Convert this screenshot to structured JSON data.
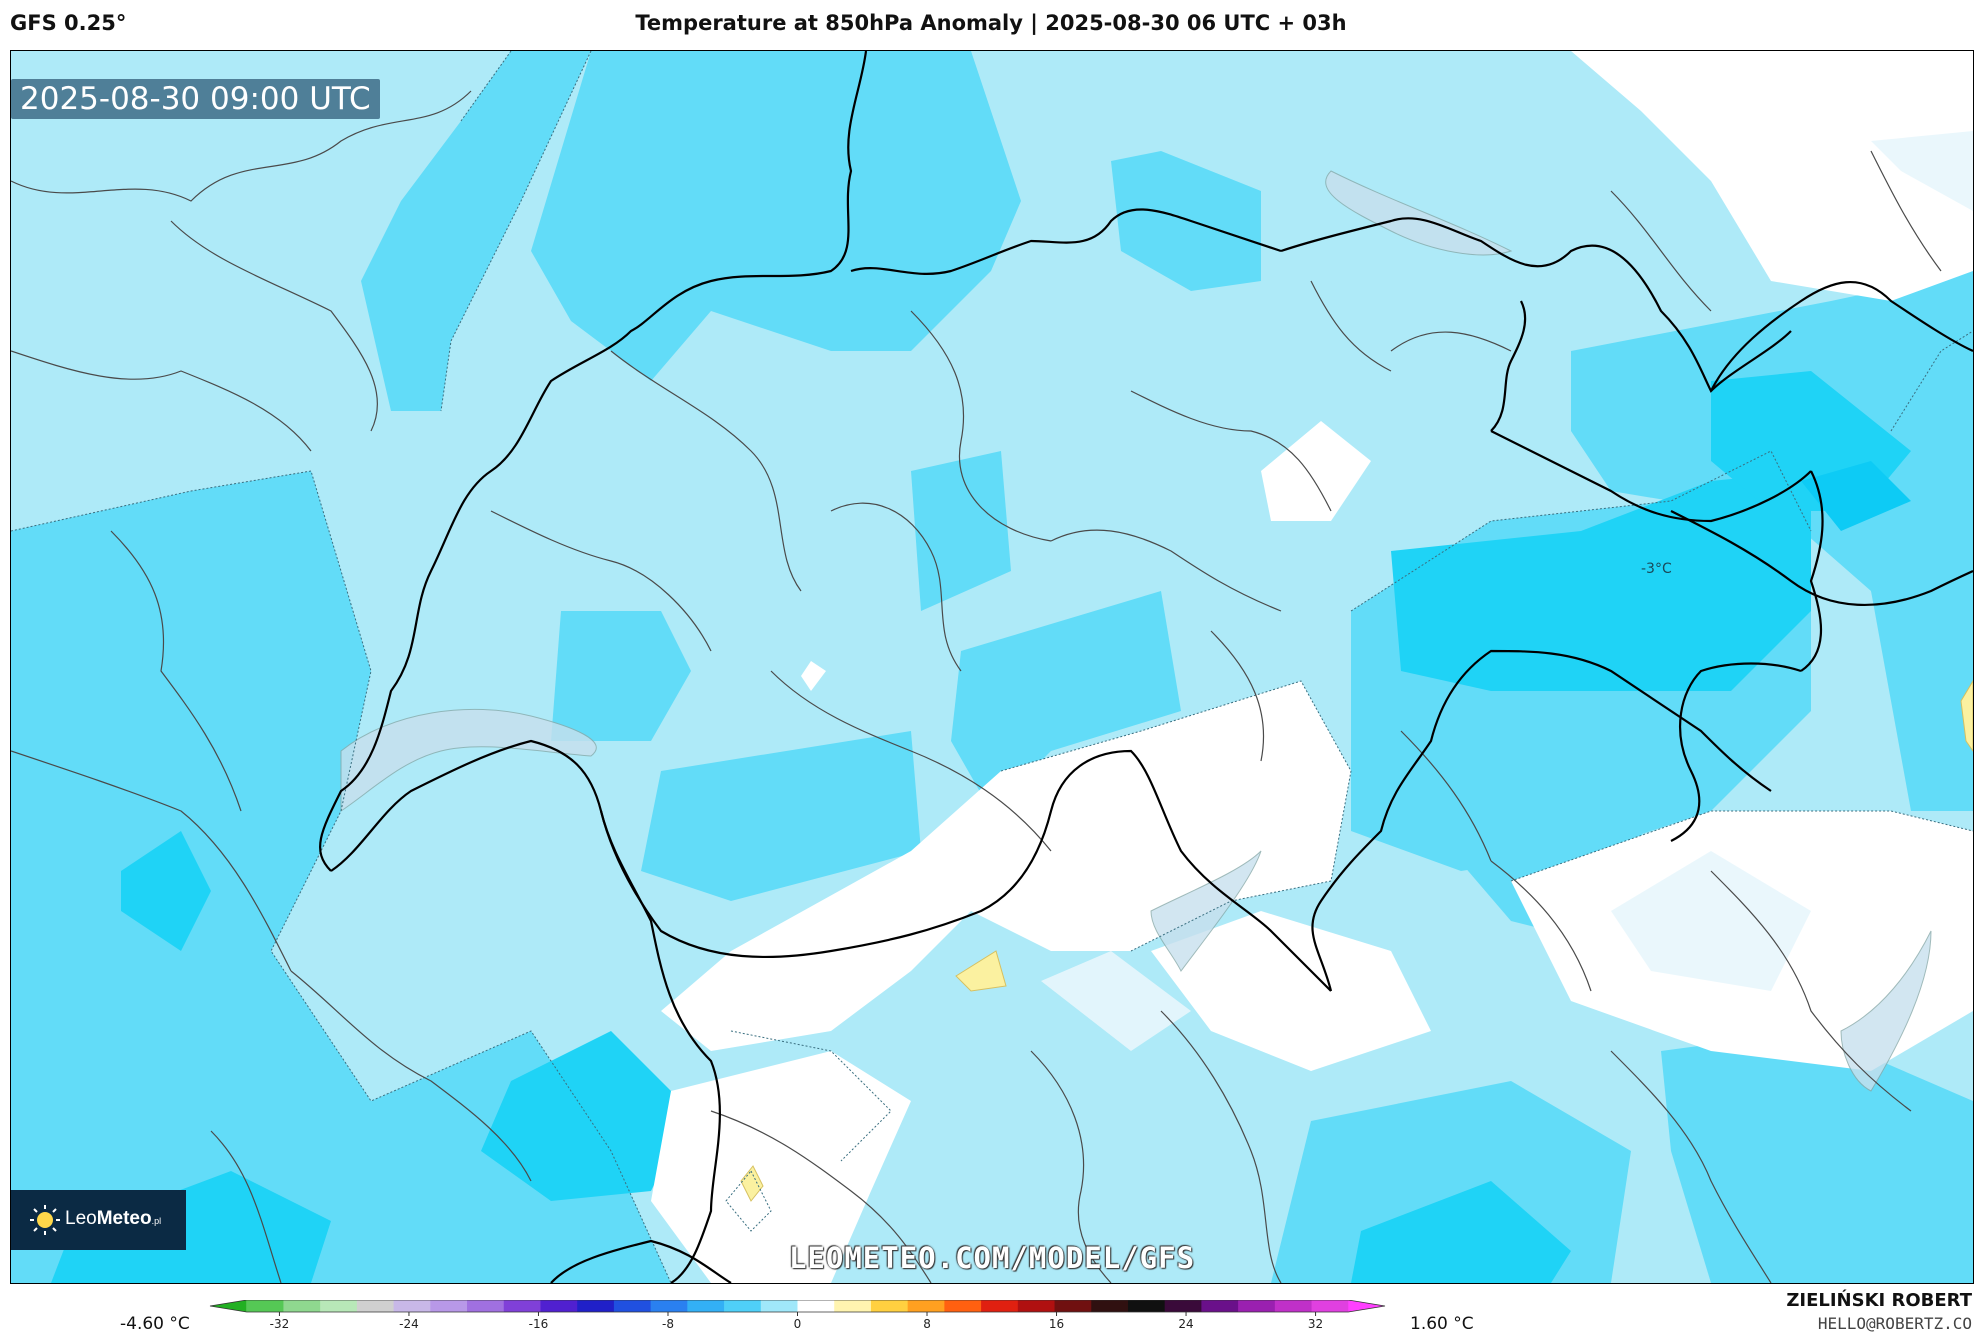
{
  "header": {
    "model": "GFS 0.25°",
    "title": "Temperature at 850hPa Anomaly | 2025-08-30 06 UTC + 03h"
  },
  "map": {
    "timestamp": "2025-08-30 09:00 UTC",
    "contour_label": "-3°C",
    "watermark": "LEOMETEO.COM/MODEL/GFS",
    "logo_text_light": "Leo",
    "logo_text_bold": "Meteo",
    "logo_suffix": ".pl"
  },
  "colorbar": {
    "min_label": "-4.60 °C",
    "max_label": "1.60 °C",
    "ticks": [
      "-32",
      "-24",
      "-16",
      "-8",
      "0",
      "8",
      "16",
      "24",
      "32"
    ],
    "colors": [
      "#22b022",
      "#55c855",
      "#8fd88f",
      "#b8e8b8",
      "#d0d0d0",
      "#c8b8e8",
      "#b898e8",
      "#a070e0",
      "#8040d8",
      "#5020d0",
      "#2020c8",
      "#2050e0",
      "#2a80f0",
      "#33b0f5",
      "#4fd0f8",
      "#a0e8fa",
      "#ffffff",
      "#fff4b0",
      "#ffd040",
      "#ffa020",
      "#ff6010",
      "#e02010",
      "#b01010",
      "#701010",
      "#301010",
      "#101010",
      "#3a0a3a",
      "#6a108a",
      "#9a20b0",
      "#c030c8",
      "#e040e0",
      "#ff40ff"
    ]
  },
  "footer": {
    "author": "ZIELIŃSKI ROBERT",
    "email": "HELLO@ROBERTZ.CO"
  }
}
